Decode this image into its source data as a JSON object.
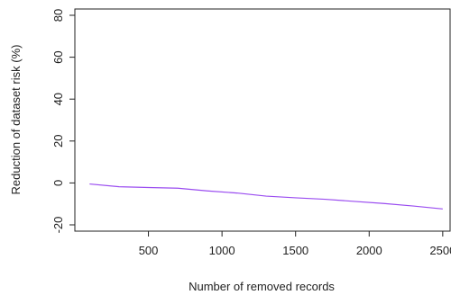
{
  "chart_data": {
    "type": "line",
    "title": "",
    "xlabel": "Number of removed records",
    "ylabel": "Reduction of dataset risk (%)",
    "xlim": [
      0,
      2550
    ],
    "ylim": [
      -23,
      83
    ],
    "xticks": [
      500,
      1000,
      1500,
      2000,
      2500
    ],
    "yticks": [
      -20,
      0,
      20,
      40,
      60,
      80
    ],
    "grid": false,
    "series": [
      {
        "color": "#9a4cf0",
        "x": [
          100,
          300,
          500,
          700,
          900,
          1100,
          1300,
          1500,
          1700,
          1900,
          2100,
          2300,
          2500
        ],
        "values": [
          -0.5,
          -1.8,
          -2.2,
          -2.5,
          -3.8,
          -4.8,
          -6.3,
          -7.1,
          -7.8,
          -8.8,
          -9.8,
          -11,
          -12.4
        ]
      }
    ]
  }
}
